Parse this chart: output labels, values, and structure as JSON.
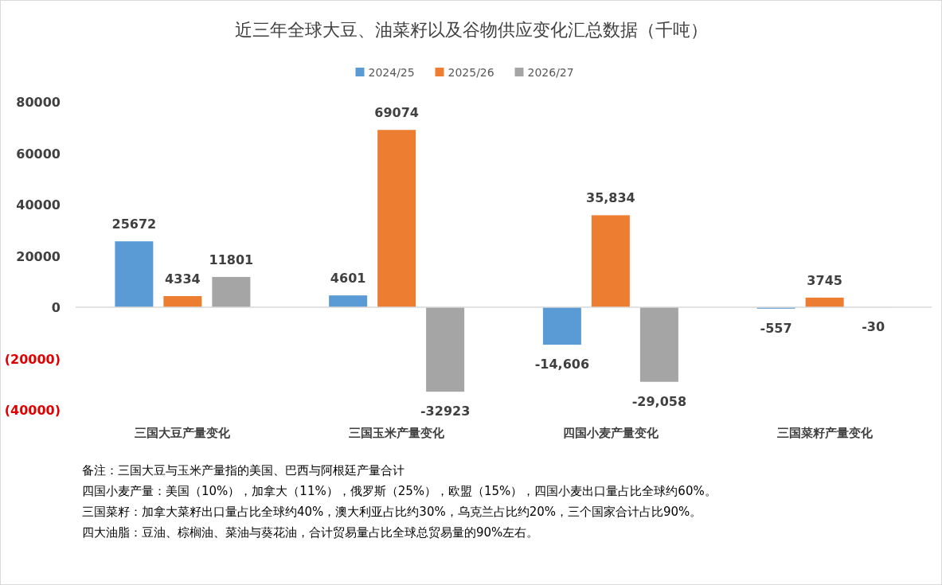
{
  "chart_data": {
    "type": "bar",
    "title": "近三年全球大豆、油菜籽以及谷物供应变化汇总数据（千吨）",
    "categories": [
      "三国大豆产量变化",
      "三国玉米产量变化",
      "四国小麦产量变化",
      "三国菜籽产量变化"
    ],
    "series": [
      {
        "name": "2024/25",
        "color": "#5b9bd5",
        "values": [
          25672,
          4601,
          -14606,
          -557
        ],
        "value_labels": [
          "25672",
          "4601",
          "-14,606",
          "-557"
        ]
      },
      {
        "name": "2025/26",
        "color": "#ed7d31",
        "values": [
          4334,
          69074,
          35834,
          3745
        ],
        "value_labels": [
          "4334",
          "69074",
          "35,834",
          "3745"
        ]
      },
      {
        "name": "2026/27",
        "color": "#a5a5a5",
        "values": [
          11801,
          -32923,
          -29058,
          -30
        ],
        "value_labels": [
          "11801",
          "-32923",
          "-29,058",
          "-30"
        ]
      }
    ],
    "ylim": [
      -40000,
      80000
    ],
    "yticks": [
      {
        "value": -40000,
        "label": "(40000)"
      },
      {
        "value": -20000,
        "label": "(20000)"
      },
      0,
      20000,
      40000,
      60000,
      80000
    ],
    "ref_lines": [
      {
        "axis": "y",
        "value": 0,
        "color": "#d9d9d9"
      }
    ],
    "legend": "top",
    "annotations": [
      "备注：三国大豆与玉米产量指的美国、巴西与阿根廷产量合计",
      "四国小麦产量：美国（10%），加拿大（11%），俄罗斯（25%），欧盟（15%），四国小麦出口量占比全球约60%。",
      "三国菜籽：加拿大菜籽出口量占比全球约40%，澳大利亚占比约30%，乌克兰占比约20%，三个国家合计占比90%。",
      "四大油脂：豆油、棕榈油、菜油与葵花油，合计贸易量占比全球总贸易量的90%左右。"
    ]
  }
}
